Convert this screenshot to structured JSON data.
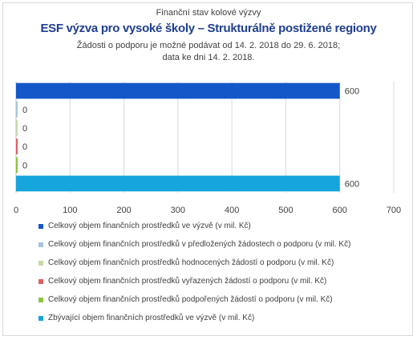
{
  "header": {
    "supertitle": "Finanční stav kolové výzvy",
    "title": "ESF výzva pro vysoké školy – Strukturálně postižené regiony",
    "subtitle_line1": "Žádosti o podporu je možné podávat od 14. 2. 2018 do 29. 6. 2018;",
    "subtitle_line2": "data ke dni 14. 2. 2018."
  },
  "chart_data": {
    "type": "bar",
    "orientation": "horizontal",
    "xlim": [
      0,
      700
    ],
    "x_ticks": [
      "0",
      "100",
      "200",
      "300",
      "400",
      "500",
      "600",
      "700"
    ],
    "grid": true,
    "legend_position": "bottom",
    "series": [
      {
        "name": "Celkový objem finančních prostředků ve výzvě (v mil. Kč)",
        "value": 600,
        "label": "600",
        "color": "#1457c9"
      },
      {
        "name": "Celkový objem finančních prostředků v předložených žádostech o podporu (v mil. Kč)",
        "value": 0,
        "label": "0",
        "color": "#a9c3e0"
      },
      {
        "name": "Celkový objem finančních prostředků hodnocených žádostí o podporu (v mil. Kč)",
        "value": 0,
        "label": "0",
        "color": "#c7d9a8"
      },
      {
        "name": "Celkový objem finančních prostředků vyřazených žádostí o podporu (v mil. Kč)",
        "value": 0,
        "label": "0",
        "color": "#e06060"
      },
      {
        "name": "Celkový objem finančních prostředků podpořených žádostí o podporu (v mil. Kč)",
        "value": 0,
        "label": "0",
        "color": "#8cc63f"
      },
      {
        "name": "Zbývající objem finančních prostředků ve výzvě (v mil. Kč)",
        "value": 600,
        "label": "600",
        "color": "#16a5dc"
      }
    ]
  }
}
